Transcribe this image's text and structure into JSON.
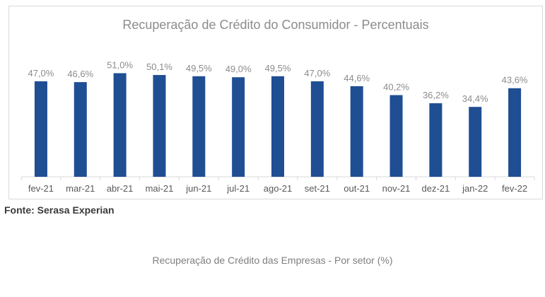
{
  "source_note": "Fonte: Serasa Experian",
  "next_title": "Recuperação de Crédito das Empresas - Por setor (%)",
  "colors": {
    "bar": "#1f4e93",
    "label": "#8c8c8c",
    "axis": "#d9d9d9"
  },
  "chart_data": {
    "type": "bar",
    "title": "Recuperação de Crédito do Consumidor - Percentuais",
    "xlabel": "",
    "ylabel": "",
    "ylim": [
      0,
      55
    ],
    "grid": false,
    "categories": [
      "fev-21",
      "mar-21",
      "abr-21",
      "mai-21",
      "jun-21",
      "jul-21",
      "ago-21",
      "set-21",
      "out-21",
      "nov-21",
      "dez-21",
      "jan-22",
      "fev-22"
    ],
    "values": [
      47.0,
      46.6,
      51.0,
      50.1,
      49.5,
      49.0,
      49.5,
      47.0,
      44.6,
      40.2,
      36.2,
      34.4,
      43.6
    ],
    "data_labels": [
      "47,0%",
      "46,6%",
      "51,0%",
      "50,1%",
      "49,5%",
      "49,0%",
      "49,5%",
      "47,0%",
      "44,6%",
      "40,2%",
      "36,2%",
      "34,4%",
      "43,6%"
    ]
  }
}
